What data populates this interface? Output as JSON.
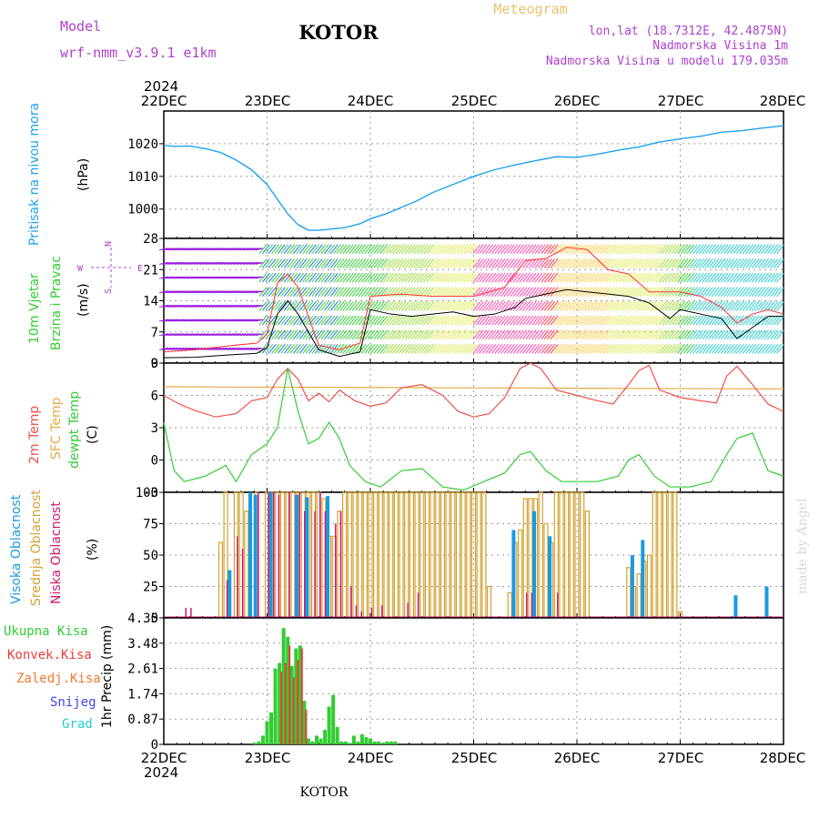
{
  "header": {
    "model_label": "Model",
    "model_name": "wrf-nmm_v3.9.1  e1km",
    "station": "KOTOR",
    "meteogram": "Meteogram",
    "lonlat": "lon,lat (18.7312E, 42.4875N)",
    "elevation": "Nadmorska Visina 1m",
    "model_elevation": "Nadmorska Visina u modelu 179.035m",
    "year_top": "2024",
    "year_bottom": "2024",
    "footer_station": "KOTOR",
    "credit": "made by Angel"
  },
  "colors": {
    "pressure": "#1fa2ee",
    "temp2m": "#f0504a",
    "sfc": "#e8a84a",
    "dewpt": "#33cc33",
    "high_cloud": "#1a9ae0",
    "mid_cloud": "#d4a030",
    "low_cloud": "#d01870",
    "precip_total": "#33cc33",
    "precip_conv": "#f03a3a",
    "precip_frozen": "#f07a2a",
    "snow": "#4444ee",
    "hail": "#22cccc",
    "wind_purple": "#9a1ae0",
    "gust": "#ff3333",
    "axis": "#000000",
    "grid": "#999999"
  },
  "chart_data": [
    {
      "type": "line",
      "panel": "pressure",
      "ylabel_title": "Pritisak na nivou mora",
      "ylabel_unit": "(hPa)",
      "ylim": [
        991,
        1030
      ],
      "yticks": [
        1000,
        1010,
        1020
      ],
      "grid": true,
      "x_days": [
        "22DEC",
        "23DEC",
        "24DEC",
        "25DEC",
        "26DEC",
        "27DEC",
        "28DEC"
      ],
      "series": [
        {
          "x": [
            0,
            0.1,
            0.25,
            0.4,
            0.55,
            0.7,
            0.85,
            1.0,
            1.1,
            1.2,
            1.3,
            1.4,
            1.5,
            1.6,
            1.75,
            1.9,
            2.0,
            2.15,
            2.3,
            2.45,
            2.6,
            2.8,
            3.0,
            3.2,
            3.4,
            3.6,
            3.8,
            4.0,
            4.2,
            4.4,
            4.6,
            4.8,
            5.0,
            5.2,
            5.4,
            5.6,
            5.8,
            6.0
          ],
          "y": [
            1019.5,
            1019.2,
            1019.3,
            1018.5,
            1017.3,
            1015,
            1012,
            1007.5,
            1003,
            998.5,
            995.2,
            993.5,
            993.5,
            993.8,
            994.3,
            995.5,
            997,
            998.5,
            1000.5,
            1002.5,
            1005,
            1007.5,
            1010,
            1012,
            1013.5,
            1014.8,
            1016,
            1015.8,
            1016.8,
            1018,
            1019,
            1020.5,
            1021.5,
            1022.3,
            1023.5,
            1024,
            1024.8,
            1025.5
          ]
        }
      ]
    },
    {
      "type": "line",
      "panel": "wind",
      "ylabel_title": "10m Vjetar",
      "ylabel_title2": "Brzina i Pravac",
      "ylabel_unit": "(m/s)",
      "ylim": [
        0,
        28
      ],
      "yticks": [
        0,
        7,
        14,
        21,
        28
      ],
      "grid": true,
      "direction_legend_n": "N",
      "direction_legend_w": "W",
      "direction_legend_e": "E",
      "direction_legend_s": "S",
      "series": [
        {
          "name": "speed",
          "x": [
            0,
            0.3,
            0.6,
            0.9,
            1.0,
            1.1,
            1.2,
            1.3,
            1.5,
            1.7,
            1.9,
            2.0,
            2.2,
            2.4,
            2.6,
            2.8,
            3.0,
            3.2,
            3.4,
            3.5,
            3.7,
            3.9,
            4.1,
            4.3,
            4.5,
            4.7,
            4.9,
            5.0,
            5.2,
            5.4,
            5.55,
            5.7,
            5.85,
            6.0
          ],
          "y": [
            1.2,
            1.3,
            1.8,
            2.2,
            3.5,
            11,
            14,
            11,
            3,
            1.5,
            2.5,
            12,
            11,
            10.5,
            11,
            11.5,
            10.5,
            11,
            12.5,
            14.5,
            15.5,
            16.5,
            16,
            15.5,
            15,
            13.5,
            10,
            12,
            11,
            10,
            5.5,
            8,
            10.5,
            10.5
          ]
        },
        {
          "name": "gust",
          "x": [
            0,
            0.3,
            0.6,
            0.9,
            1.0,
            1.1,
            1.2,
            1.3,
            1.5,
            1.7,
            1.9,
            2.0,
            2.3,
            2.6,
            3.0,
            3.3,
            3.5,
            3.7,
            3.9,
            4.1,
            4.3,
            4.5,
            4.7,
            5.0,
            5.2,
            5.4,
            5.55,
            5.7,
            5.85,
            6.0
          ],
          "y": [
            2.5,
            3,
            3.8,
            4.5,
            6.5,
            18,
            20,
            17,
            4,
            3,
            4.5,
            15,
            15.5,
            15,
            15,
            17,
            23,
            23.5,
            26,
            25.5,
            21,
            20,
            16,
            16,
            15,
            12.5,
            9,
            11,
            12,
            11
          ]
        }
      ]
    },
    {
      "type": "line",
      "panel": "temperature",
      "ylabel_title": "2m Temp",
      "ylabel_title2": "SFC Temp",
      "ylabel_title3": "dewpt Temp",
      "ylabel_unit": "(C)",
      "ylim": [
        -3,
        9
      ],
      "yticks": [
        -3,
        0,
        3,
        6,
        9
      ],
      "grid": true,
      "series": [
        {
          "name": "2m Temp",
          "x": [
            0,
            0.15,
            0.3,
            0.5,
            0.7,
            0.85,
            1.0,
            1.1,
            1.2,
            1.3,
            1.4,
            1.5,
            1.6,
            1.7,
            1.85,
            2.0,
            2.15,
            2.3,
            2.5,
            2.7,
            2.85,
            3.0,
            3.15,
            3.3,
            3.45,
            3.55,
            3.65,
            3.8,
            4.0,
            4.2,
            4.35,
            4.5,
            4.6,
            4.7,
            4.8,
            5.0,
            5.2,
            5.35,
            5.45,
            5.55,
            5.7,
            5.85,
            6.0
          ],
          "y": [
            6,
            5.2,
            4.6,
            4,
            4.3,
            5.5,
            5.8,
            7.5,
            8.5,
            7.5,
            5.5,
            6.2,
            5.4,
            6.5,
            5.5,
            5.0,
            5.3,
            6.7,
            7.0,
            6.0,
            4.5,
            4.0,
            4.3,
            5.8,
            8.5,
            9.0,
            8.5,
            6.5,
            6.0,
            5.5,
            5.2,
            7.0,
            8.3,
            8.8,
            6.5,
            5.8,
            5.5,
            5.3,
            7.8,
            8.7,
            7.0,
            5.2,
            4.5
          ]
        },
        {
          "name": "SFC Temp",
          "x": [
            0,
            6
          ],
          "y": [
            6.8,
            6.6
          ]
        },
        {
          "name": "dewpt Temp",
          "x": [
            0,
            0.1,
            0.2,
            0.4,
            0.6,
            0.7,
            0.85,
            1.0,
            1.1,
            1.2,
            1.3,
            1.4,
            1.5,
            1.6,
            1.7,
            1.8,
            1.95,
            2.1,
            2.3,
            2.5,
            2.7,
            2.9,
            3.1,
            3.3,
            3.45,
            3.55,
            3.7,
            3.85,
            4.0,
            4.2,
            4.4,
            4.5,
            4.6,
            4.75,
            4.9,
            5.1,
            5.3,
            5.45,
            5.55,
            5.7,
            5.85,
            6.0
          ],
          "y": [
            3.5,
            -1.0,
            -2.0,
            -1.5,
            -0.5,
            -2.0,
            0.5,
            1.5,
            3.0,
            8.5,
            4.5,
            1.5,
            2.0,
            3.5,
            2.0,
            -0.5,
            -2.0,
            -2.5,
            -1.0,
            -0.8,
            -2.5,
            -2.8,
            -2.0,
            -1.2,
            0.5,
            0.8,
            -1.0,
            -2.0,
            -2.0,
            -2.0,
            -1.5,
            0.0,
            0.5,
            -1.5,
            -2.5,
            -2.5,
            -2.0,
            0.5,
            2.0,
            2.5,
            -1.0,
            -1.5
          ]
        }
      ]
    },
    {
      "type": "bar",
      "panel": "cloud",
      "ylabel_title": "Visoka Oblacnost",
      "ylabel_title2": "Srednja Oblacnost",
      "ylabel_title3": "Niska Oblacnost",
      "ylabel_unit": "(%)",
      "ylim": [
        0,
        100
      ],
      "yticks": [
        0,
        25,
        50,
        75,
        100
      ],
      "grid": true,
      "series": [
        {
          "name": "Visoka Oblacnost",
          "x": [
            0.65,
            0.85,
            0.9,
            1.05,
            1.3,
            1.4,
            1.6,
            3.4,
            3.6,
            3.75,
            4.55,
            4.65,
            5.55,
            5.85
          ],
          "y": [
            38,
            100,
            98,
            100,
            98,
            96,
            97,
            70,
            85,
            65,
            50,
            62,
            18,
            25
          ]
        },
        {
          "name": "Srednja Oblacnost",
          "x": [
            0.55,
            0.6,
            0.7,
            0.75,
            0.8,
            0.9,
            1.0,
            1.05,
            1.1,
            1.15,
            1.2,
            1.25,
            1.3,
            1.35,
            1.4,
            1.45,
            1.5,
            1.55,
            1.6,
            1.65,
            1.7,
            1.75,
            1.8,
            1.85,
            1.9,
            1.95,
            2.0,
            2.05,
            2.1,
            2.15,
            2.2,
            2.25,
            2.3,
            2.35,
            2.4,
            2.45,
            2.5,
            2.55,
            2.6,
            2.65,
            2.7,
            2.75,
            2.8,
            2.85,
            2.9,
            2.95,
            3.0,
            3.05,
            3.1,
            3.15,
            3.35,
            3.4,
            3.45,
            3.5,
            3.55,
            3.6,
            3.65,
            3.7,
            3.75,
            3.8,
            3.85,
            3.9,
            3.95,
            4.0,
            4.05,
            4.1,
            4.5,
            4.55,
            4.6,
            4.65,
            4.7,
            4.75,
            4.8,
            4.85,
            4.9,
            4.95,
            5.0
          ],
          "y": [
            60,
            100,
            100,
            100,
            85,
            100,
            100,
            100,
            100,
            100,
            100,
            100,
            100,
            100,
            100,
            100,
            100,
            95,
            65,
            65,
            85,
            100,
            100,
            100,
            100,
            100,
            100,
            100,
            100,
            100,
            100,
            100,
            100,
            100,
            100,
            100,
            100,
            100,
            100,
            100,
            100,
            100,
            100,
            100,
            100,
            100,
            100,
            100,
            100,
            25,
            20,
            60,
            70,
            95,
            95,
            95,
            100,
            75,
            60,
            100,
            100,
            100,
            100,
            100,
            100,
            85,
            40,
            25,
            35,
            45,
            50,
            100,
            100,
            100,
            100,
            100,
            5
          ]
        },
        {
          "name": "Niska Oblacnost",
          "x": [
            0.2,
            0.25,
            0.6,
            0.7,
            0.75,
            0.9,
            1.0,
            1.05,
            1.1,
            1.2,
            1.3,
            1.35,
            1.45,
            1.5,
            1.55,
            1.65,
            1.7,
            1.8,
            1.85,
            1.9,
            2.0,
            2.1,
            2.35,
            2.45,
            3.5,
            3.55,
            3.8
          ],
          "y": [
            8,
            8,
            30,
            65,
            55,
            100,
            100,
            100,
            98,
            100,
            100,
            85,
            85,
            100,
            85,
            75,
            85,
            25,
            10,
            5,
            8,
            10,
            12,
            20,
            20,
            20,
            20
          ]
        }
      ]
    },
    {
      "type": "bar",
      "panel": "precip",
      "ylabel_title": "1hr Precip",
      "ylabel_unit": "(mm)",
      "ylim": [
        0,
        4.35
      ],
      "yticks": [
        0,
        0.87,
        1.74,
        2.61,
        3.48,
        4.35
      ],
      "legend": [
        "Ukupna Kisa",
        "Konvek.Kisa",
        "Zaledj.Kisa",
        "Snijeg",
        "Grad"
      ],
      "grid": true,
      "series": [
        {
          "name": "Ukupna Kisa",
          "x": [
            0.88,
            0.92,
            0.96,
            1.0,
            1.04,
            1.08,
            1.12,
            1.16,
            1.2,
            1.24,
            1.28,
            1.32,
            1.36,
            1.4,
            1.44,
            1.48,
            1.52,
            1.56,
            1.6,
            1.64,
            1.68,
            1.72,
            1.76,
            1.8,
            1.84,
            1.88,
            1.92,
            1.96,
            2.0,
            2.04,
            2.08,
            2.12,
            2.16,
            2.2,
            2.24
          ],
          "y": [
            0.05,
            0.1,
            0.3,
            0.8,
            1.1,
            2.6,
            2.8,
            4.0,
            3.7,
            2.7,
            3.3,
            3.4,
            1.5,
            0.2,
            0.1,
            0.3,
            0.2,
            0.5,
            1.3,
            1.7,
            0.6,
            0.1,
            0.1,
            0.05,
            0.3,
            0.1,
            0.35,
            0.25,
            0.2,
            0.1,
            0.1,
            0.05,
            0.1,
            0.1,
            0.1
          ]
        },
        {
          "name": "Konvek.Kisa",
          "x": [
            1.12,
            1.16,
            1.2,
            1.24,
            1.28,
            1.32,
            1.36
          ],
          "y": [
            2.5,
            2.8,
            3.4,
            2.3,
            2.9,
            3.3,
            1.2
          ]
        }
      ]
    }
  ]
}
